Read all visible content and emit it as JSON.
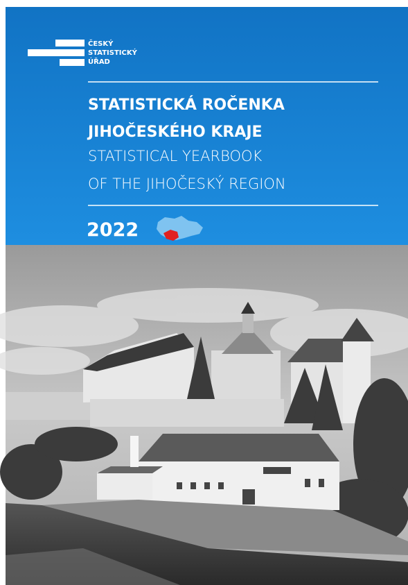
{
  "logo": {
    "lines": [
      "ČESKÝ",
      "STATISTICKÝ",
      "ÚŘAD"
    ]
  },
  "title": {
    "cs": [
      "STATISTICKÁ ROČENKA",
      "JIHOČESKÉHO KRAJE"
    ],
    "en": [
      "STATISTICAL YEARBOOK",
      "OF THE JIHOČESKÝ REGION"
    ]
  },
  "year": "2022"
}
